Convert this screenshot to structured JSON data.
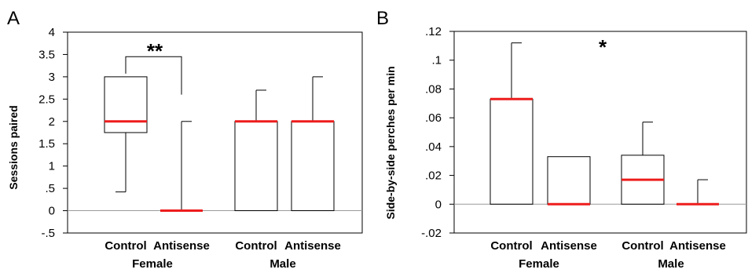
{
  "chart_data": [
    {
      "type": "box",
      "panel_label": "A",
      "ylabel": "Sessions paired",
      "ylim": [
        -0.5,
        4
      ],
      "yticks": [
        {
          "v": 4,
          "label": "4"
        },
        {
          "v": 3.5,
          "label": "3.5"
        },
        {
          "v": 3,
          "label": "3"
        },
        {
          "v": 2.5,
          "label": "2.5"
        },
        {
          "v": 2,
          "label": "2"
        },
        {
          "v": 1.5,
          "label": "1.5"
        },
        {
          "v": 1,
          "label": "1"
        },
        {
          "v": 0.5,
          "label": ".5"
        },
        {
          "v": 0,
          "label": "0"
        },
        {
          "v": -0.5,
          "label": "-.5"
        }
      ],
      "categories": [
        "Control",
        "Antisense",
        "Control",
        "Antisense"
      ],
      "groups": [
        "Female",
        "Male"
      ],
      "boxes": [
        {
          "whisker_low": 0.42,
          "q1": 1.75,
          "median": 2.0,
          "q3": 3.0,
          "whisker_high": 3.0
        },
        {
          "whisker_low": 0,
          "q1": 0,
          "median": 0,
          "q3": 0,
          "whisker_high": 2.0
        },
        {
          "whisker_low": 0,
          "q1": 0,
          "median": 2.0,
          "q3": 2.0,
          "whisker_high": 2.7
        },
        {
          "whisker_low": 0,
          "q1": 0,
          "median": 2.0,
          "q3": 2.0,
          "whisker_high": 3.0
        }
      ],
      "reference_line": 0,
      "significance": {
        "label": "**",
        "between": [
          0,
          1
        ],
        "y": 3.45
      }
    },
    {
      "type": "box",
      "panel_label": "B",
      "ylabel": "Side-by-side perches per min",
      "ylim": [
        -0.02,
        0.12
      ],
      "yticks": [
        {
          "v": 0.12,
          "label": ".12"
        },
        {
          "v": 0.1,
          "label": ".1"
        },
        {
          "v": 0.08,
          "label": ".08"
        },
        {
          "v": 0.06,
          "label": ".06"
        },
        {
          "v": 0.04,
          "label": ".04"
        },
        {
          "v": 0.02,
          "label": ".02"
        },
        {
          "v": 0,
          "label": "0"
        },
        {
          "v": -0.02,
          "label": "-.02"
        }
      ],
      "categories": [
        "Control",
        "Antisense",
        "Control",
        "Antisense"
      ],
      "groups": [
        "Female",
        "Male"
      ],
      "boxes": [
        {
          "whisker_low": 0,
          "q1": 0,
          "median": 0.073,
          "q3": 0.073,
          "whisker_high": 0.112
        },
        {
          "whisker_low": 0,
          "q1": 0,
          "median": 0,
          "q3": 0.033,
          "whisker_high": 0.033
        },
        {
          "whisker_low": 0,
          "q1": 0,
          "median": 0.017,
          "q3": 0.034,
          "whisker_high": 0.057
        },
        {
          "whisker_low": 0,
          "q1": 0,
          "median": 0,
          "q3": 0,
          "whisker_high": 0.017
        }
      ],
      "reference_line": 0,
      "significance": {
        "label": "*"
      }
    }
  ],
  "colors": {
    "median": "#ee1c1c",
    "reference": "#9a9a9a",
    "ink": "#000000"
  }
}
